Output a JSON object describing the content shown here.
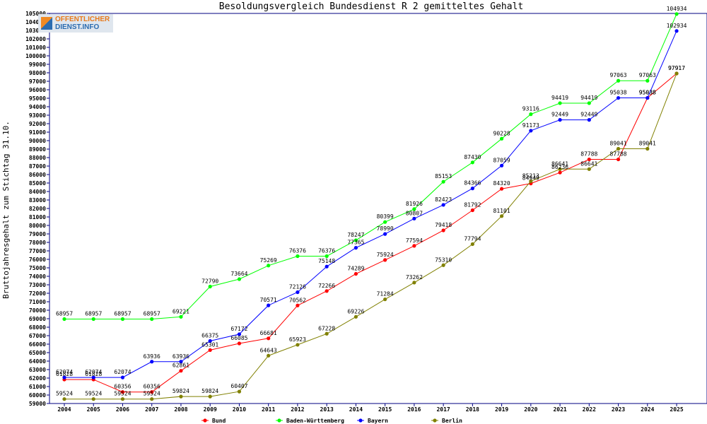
{
  "logo": {
    "line1": "OFFENTLICHER",
    "line2": "DIENST.INFO"
  },
  "chart_data": {
    "type": "line",
    "title": "Besoldungsvergleich Bundesdienst R 2 gemitteltes Gehalt",
    "xlabel": "",
    "ylabel": "Bruttojahresgehalt zum Stichtag 31.10.",
    "categories": [
      "2004",
      "2005",
      "2006",
      "2007",
      "2008",
      "2009",
      "2010",
      "2011",
      "2012",
      "2013",
      "2014",
      "2015",
      "2016",
      "2017",
      "2018",
      "2019",
      "2020",
      "2021",
      "2022",
      "2023",
      "2024",
      "2025"
    ],
    "ylim": [
      59000,
      105000
    ],
    "ytick_step": 1000,
    "grid": false,
    "legend_position": "bottom",
    "series": [
      {
        "name": "Bund",
        "color": "#ff0000",
        "values": [
          61828,
          61828,
          60356,
          60356,
          62861,
          65301,
          66085,
          66681,
          70562,
          72266,
          74289,
          75924,
          77594,
          79418,
          81792,
          84320,
          84949,
          86236,
          87788,
          87788,
          95038,
          97917
        ]
      },
      {
        "name": "Baden-Württemberg",
        "color": "#00ff00",
        "values": [
          68957,
          68957,
          68957,
          68957,
          69221,
          72790,
          73664,
          75269,
          76376,
          76376,
          78247,
          80399,
          81926,
          85153,
          87430,
          90228,
          93116,
          94419,
          94419,
          97063,
          97063,
          104934
        ]
      },
      {
        "name": "Bayern",
        "color": "#0000ff",
        "values": [
          62074,
          62074,
          62074,
          63936,
          63936,
          66375,
          67172,
          70571,
          72126,
          75148,
          77365,
          78990,
          80807,
          82423,
          84366,
          87059,
          91173,
          92449,
          92449,
          95038,
          95038,
          102934
        ]
      },
      {
        "name": "Berlin",
        "color": "#808000",
        "values": [
          59524,
          59524,
          59524,
          59524,
          59824,
          59824,
          60407,
          64643,
          65923,
          67228,
          69226,
          71284,
          73262,
          75310,
          77794,
          81101,
          85213,
          86641,
          86641,
          89041,
          89041,
          97917
        ]
      }
    ]
  }
}
